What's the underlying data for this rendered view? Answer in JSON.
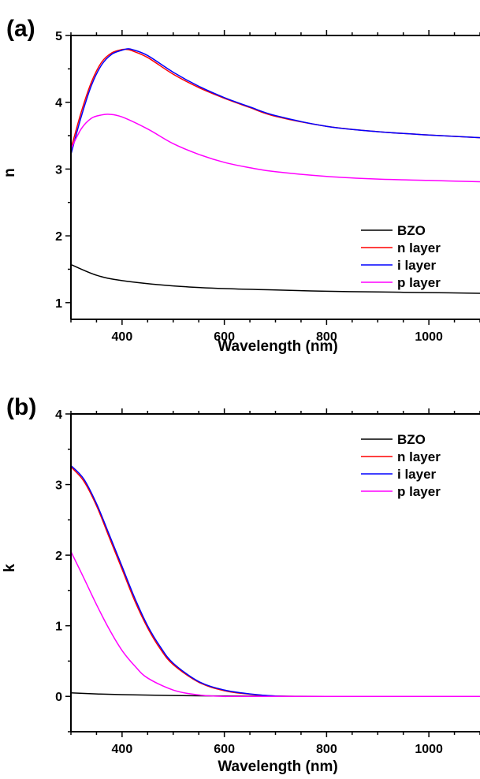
{
  "chart_data": [
    {
      "type": "line",
      "panel_label": "(a)",
      "xlabel": "Wavelength (nm)",
      "ylabel": "n",
      "xlim": [
        300,
        1100
      ],
      "ylim": [
        0.75,
        5
      ],
      "x_ticks": [
        400,
        600,
        800,
        1000
      ],
      "y_ticks": [
        1,
        2,
        3,
        4,
        5
      ],
      "legend_position": "center-right",
      "series": [
        {
          "name": "BZO",
          "color": "#000000",
          "x": [
            300,
            350,
            400,
            500,
            600,
            700,
            800,
            900,
            1000,
            1100
          ],
          "y": [
            1.57,
            1.41,
            1.33,
            1.25,
            1.21,
            1.19,
            1.17,
            1.16,
            1.15,
            1.14
          ]
        },
        {
          "name": "n layer",
          "color": "#ff0000",
          "x": [
            300,
            320,
            340,
            360,
            380,
            400,
            410,
            420,
            450,
            500,
            550,
            600,
            650,
            700,
            800,
            900,
            1000,
            1100
          ],
          "y": [
            3.3,
            3.85,
            4.3,
            4.6,
            4.74,
            4.79,
            4.79,
            4.77,
            4.67,
            4.42,
            4.22,
            4.06,
            3.92,
            3.79,
            3.64,
            3.56,
            3.51,
            3.47
          ]
        },
        {
          "name": "i layer",
          "color": "#0000ff",
          "x": [
            300,
            320,
            340,
            360,
            380,
            400,
            410,
            420,
            450,
            500,
            550,
            600,
            650,
            700,
            800,
            900,
            1000,
            1100
          ],
          "y": [
            3.22,
            3.78,
            4.25,
            4.56,
            4.72,
            4.78,
            4.8,
            4.79,
            4.7,
            4.45,
            4.24,
            4.07,
            3.93,
            3.8,
            3.64,
            3.56,
            3.51,
            3.47
          ]
        },
        {
          "name": "p layer",
          "color": "#ff00ff",
          "x": [
            300,
            320,
            340,
            360,
            375,
            400,
            450,
            500,
            550,
            600,
            650,
            700,
            800,
            900,
            1000,
            1100
          ],
          "y": [
            3.3,
            3.6,
            3.76,
            3.81,
            3.82,
            3.78,
            3.6,
            3.38,
            3.22,
            3.1,
            3.02,
            2.96,
            2.89,
            2.85,
            2.83,
            2.81
          ]
        }
      ]
    },
    {
      "type": "line",
      "panel_label": "(b)",
      "xlabel": "Wavelength (nm)",
      "ylabel": "k",
      "xlim": [
        300,
        1100
      ],
      "ylim": [
        -0.5,
        4
      ],
      "x_ticks": [
        400,
        600,
        800,
        1000
      ],
      "y_ticks": [
        0,
        1,
        2,
        3,
        4
      ],
      "legend_position": "top-right",
      "series": [
        {
          "name": "BZO",
          "color": "#000000",
          "x": [
            300,
            350,
            400,
            500,
            600,
            700,
            800,
            1100
          ],
          "y": [
            0.05,
            0.035,
            0.025,
            0.012,
            0.005,
            0.002,
            0.0,
            0.0
          ]
        },
        {
          "name": "n layer",
          "color": "#ff0000",
          "x": [
            300,
            325,
            350,
            375,
            400,
            425,
            450,
            475,
            500,
            550,
            600,
            650,
            700,
            750,
            800,
            1100
          ],
          "y": [
            3.25,
            3.05,
            2.7,
            2.25,
            1.8,
            1.35,
            0.97,
            0.67,
            0.45,
            0.2,
            0.08,
            0.03,
            0.005,
            0.0,
            0.0,
            0.0
          ]
        },
        {
          "name": "i layer",
          "color": "#0000ff",
          "x": [
            300,
            325,
            350,
            375,
            400,
            425,
            450,
            475,
            500,
            550,
            600,
            650,
            700,
            750,
            800,
            1100
          ],
          "y": [
            3.27,
            3.08,
            2.73,
            2.29,
            1.84,
            1.39,
            1.0,
            0.7,
            0.47,
            0.21,
            0.09,
            0.035,
            0.005,
            0.0,
            0.0,
            0.0
          ]
        },
        {
          "name": "p layer",
          "color": "#ff00ff",
          "x": [
            300,
            325,
            350,
            375,
            400,
            425,
            450,
            500,
            550,
            600,
            650,
            1100
          ],
          "y": [
            2.05,
            1.68,
            1.3,
            0.95,
            0.65,
            0.43,
            0.26,
            0.09,
            0.02,
            0.0,
            0.0,
            0.0
          ]
        }
      ]
    }
  ]
}
